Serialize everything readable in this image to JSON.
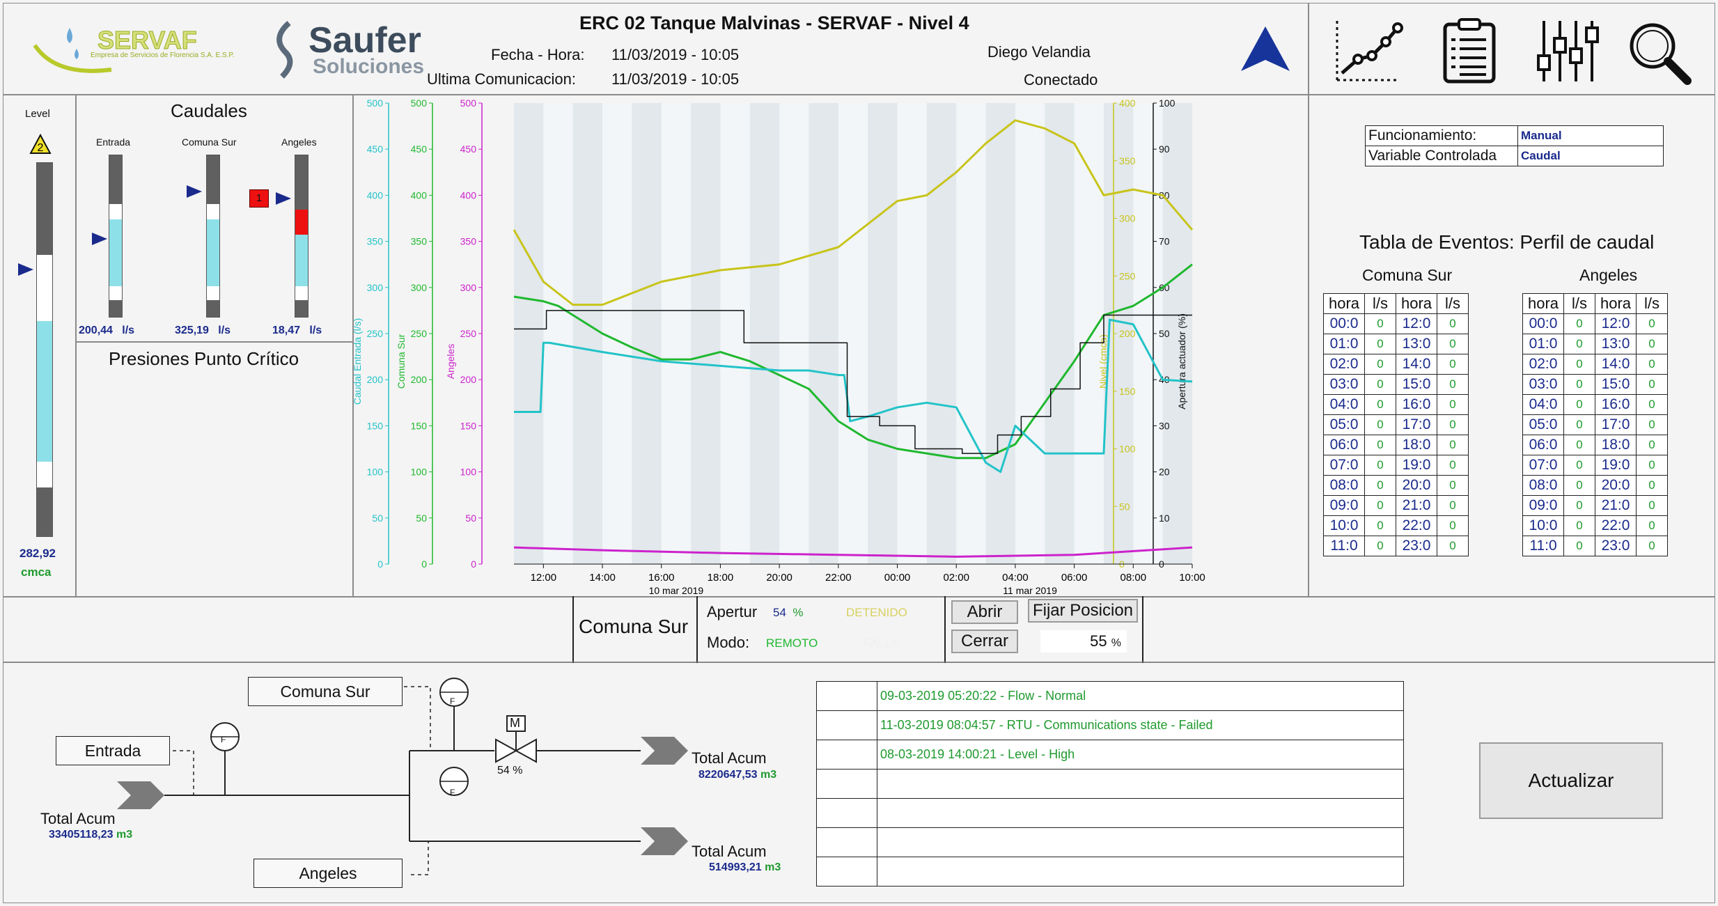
{
  "header": {
    "title": "ERC 02 Tanque Malvinas - SERVAF - Nivel 4",
    "fecha_label": "Fecha - Hora:",
    "fecha_value": "11/03/2019 - 10:05",
    "ultima_label": "Ultima Comunicacion:",
    "ultima_value": "11/03/2019 - 10:05",
    "user": "Diego Velandia",
    "status": "Conectado",
    "logo1_name": "SERVAF",
    "logo1_sub": "Empresa de Servicios de Florencia S.A. E.S.P.",
    "logo2_name": "Saufer",
    "logo2_sub": "Soluciones"
  },
  "toolbar": {
    "icons": [
      "trend-icon",
      "report-icon",
      "settings-sliders-icon",
      "search-icon"
    ]
  },
  "level": {
    "label": "Level",
    "alarm": "2",
    "value": "282,92",
    "unit": "cmca",
    "fill_fraction": 0.6
  },
  "caudales": {
    "title": "Caudales",
    "bars": [
      {
        "label": "Entrada",
        "value": "200,44",
        "unit": "l/s"
      },
      {
        "label": "Comuna Sur",
        "value": "325,19",
        "unit": "l/s"
      },
      {
        "label": "Angeles",
        "value": "18,47",
        "unit": "l/s",
        "alarm": "1"
      }
    ]
  },
  "presiones": {
    "title": "Presiones Punto Crítico"
  },
  "chart_data": {
    "type": "line",
    "x_ticks": [
      "12:00",
      "14:00",
      "16:00",
      "18:00",
      "20:00",
      "22:00",
      "00:00",
      "02:00",
      "04:00",
      "06:00",
      "08:00",
      "10:00"
    ],
    "date_labels": [
      "10 mar 2019",
      "11 mar 2019"
    ],
    "axes": [
      {
        "label": "Caudal Entrada (l/s)",
        "color": "#22c3c8",
        "ylim": [
          0,
          500
        ],
        "ticks": [
          "0",
          "50",
          "100",
          "150",
          "200",
          "250",
          "300",
          "350",
          "400",
          "450",
          "500"
        ]
      },
      {
        "label": "Comuna Sur",
        "color": "#1fb82e",
        "ylim": [
          0,
          500
        ],
        "ticks": [
          "0",
          "50",
          "100",
          "150",
          "200",
          "250",
          "300",
          "350",
          "400",
          "450",
          "500"
        ]
      },
      {
        "label": "Angeles",
        "color": "#cc22cc",
        "ylim": [
          0,
          500
        ],
        "ticks": [
          "0",
          "50",
          "100",
          "150",
          "200",
          "250",
          "300",
          "350",
          "400",
          "450",
          "500"
        ]
      },
      {
        "label": "Nivel (cmca)",
        "color": "#c8c41a",
        "ylim": [
          0,
          400
        ],
        "ticks": [
          "0",
          "50",
          "100",
          "150",
          "200",
          "250",
          "300",
          "350",
          "400"
        ]
      },
      {
        "label": "Apertura actuador (%)",
        "color": "#111111",
        "ylim": [
          0,
          100
        ],
        "ticks": [
          "0",
          "10",
          "20",
          "30",
          "40",
          "50",
          "60",
          "70",
          "80",
          "90",
          "100"
        ]
      }
    ],
    "series": [
      {
        "color": "#c8c41a",
        "axis": 3,
        "x": [
          11,
          12,
          13,
          14,
          16,
          18,
          20,
          22,
          23,
          24,
          25,
          26,
          27,
          28,
          29,
          30,
          31,
          32,
          33,
          34
        ],
        "values": [
          290,
          245,
          225,
          225,
          245,
          255,
          260,
          275,
          295,
          315,
          320,
          340,
          365,
          385,
          378,
          365,
          320,
          325,
          320,
          290
        ]
      },
      {
        "color": "#1fb82e",
        "axis": 1,
        "x": [
          11,
          12,
          12.5,
          14,
          15,
          16,
          17,
          18,
          19,
          20,
          21,
          22,
          23,
          24,
          25,
          26,
          27,
          28,
          29,
          30,
          30.5,
          31,
          32,
          33,
          34
        ],
        "values": [
          290,
          285,
          280,
          250,
          235,
          222,
          222,
          230,
          220,
          205,
          190,
          155,
          135,
          125,
          120,
          115,
          115,
          130,
          175,
          220,
          245,
          270,
          280,
          300,
          325
        ]
      },
      {
        "color": "#22c3c8",
        "axis": 0,
        "x": [
          11,
          11.9,
          12,
          12.2,
          14,
          16,
          18,
          20,
          21,
          22,
          22.2,
          22.4,
          23,
          24,
          25,
          26,
          27,
          27.5,
          28,
          29,
          30,
          31,
          31.2,
          32,
          33,
          34
        ],
        "values": [
          165,
          165,
          240,
          240,
          230,
          220,
          215,
          210,
          210,
          205,
          205,
          155,
          160,
          170,
          175,
          170,
          110,
          100,
          150,
          120,
          120,
          120,
          265,
          260,
          200,
          198
        ]
      },
      {
        "color": "#cc22cc",
        "axis": 2,
        "x": [
          11,
          14,
          18,
          22,
          26,
          30,
          34
        ],
        "values": [
          18,
          15,
          12,
          10,
          8,
          10,
          18
        ]
      },
      {
        "color": "#111111",
        "axis": 4,
        "x": [
          11,
          12.1,
          12.1,
          18.8,
          18.8,
          22.3,
          22.3,
          23.4,
          23.4,
          24.6,
          24.6,
          26.2,
          26.2,
          27.4,
          27.4,
          28.2,
          28.2,
          29.2,
          29.2,
          30.2,
          30.2,
          31,
          31,
          34
        ],
        "values": [
          51,
          51,
          55,
          55,
          48,
          48,
          32,
          32,
          30,
          30,
          25,
          25,
          24,
          24,
          28,
          28,
          32,
          32,
          38,
          38,
          48,
          48,
          54,
          54
        ]
      }
    ]
  },
  "eventos": {
    "mode_label": "Funcionamiento:",
    "mode_value": "Manual",
    "var_label": "Variable Controlada",
    "var_value": "Caudal",
    "title": "Tabla de Eventos: Perfil de caudal",
    "groups": [
      "Comuna Sur",
      "Angeles"
    ],
    "headers": [
      "hora",
      "l/s",
      "hora",
      "l/s"
    ],
    "rows": [
      [
        "00:0",
        "0",
        "12:0",
        "0"
      ],
      [
        "01:0",
        "0",
        "13:0",
        "0"
      ],
      [
        "02:0",
        "0",
        "14:0",
        "0"
      ],
      [
        "03:0",
        "0",
        "15:0",
        "0"
      ],
      [
        "04:0",
        "0",
        "16:0",
        "0"
      ],
      [
        "05:0",
        "0",
        "17:0",
        "0"
      ],
      [
        "06:0",
        "0",
        "18:0",
        "0"
      ],
      [
        "07:0",
        "0",
        "19:0",
        "0"
      ],
      [
        "08:0",
        "0",
        "20:0",
        "0"
      ],
      [
        "09:0",
        "0",
        "21:0",
        "0"
      ],
      [
        "10:0",
        "0",
        "22:0",
        "0"
      ],
      [
        "11:0",
        "0",
        "23:0",
        "0"
      ]
    ]
  },
  "control": {
    "station": "Comuna Sur",
    "apertura_label": "Apertur",
    "apertura_value": "54",
    "apertura_unit": "%",
    "state": "DETENIDO",
    "modo_label": "Modo:",
    "modo_value": "REMOTO",
    "falla": "FALLA",
    "abrir": "Abrir",
    "cerrar": "Cerrar",
    "fijar": "Fijar Posicion",
    "set_value": "55",
    "set_unit": "%"
  },
  "diagram": {
    "comuna_sur": "Comuna Sur",
    "entrada": "Entrada",
    "angeles": "Angeles",
    "valve_pct": "54 %",
    "valve_motor": "M",
    "flow_meter": "F",
    "total_label": "Total Acum",
    "total_entrada": "33405118,23",
    "total_comuna": "8220647,53",
    "total_angeles": "514993,21",
    "unit": "m3"
  },
  "alarms": [
    "09-03-2019 05:20:22 - Flow - Normal",
    "11-03-2019 08:04:57 - RTU - Communications state - Failed",
    "08-03-2019 14:00:21 - Level - High",
    "",
    "",
    "",
    ""
  ],
  "actualizar": "Actualizar"
}
